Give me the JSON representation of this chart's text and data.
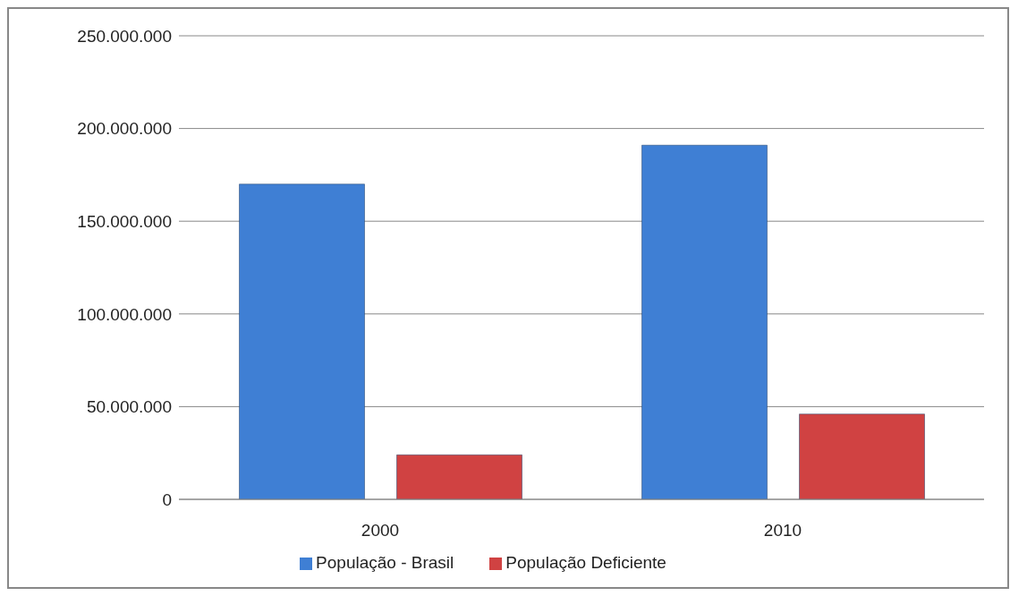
{
  "chart_data": {
    "type": "bar",
    "categories": [
      "2000",
      "2010"
    ],
    "series": [
      {
        "name": "População - Brasil",
        "color": "#3f7fd4",
        "values": [
          170000000,
          191000000
        ]
      },
      {
        "name": "População Deficiente",
        "color": "#d04242",
        "values": [
          24000000,
          46000000
        ]
      }
    ],
    "ylim": [
      0,
      250000000
    ],
    "yticks": [
      {
        "value": 0,
        "label": "0"
      },
      {
        "value": 50000000,
        "label": "50.000.000"
      },
      {
        "value": 100000000,
        "label": "100.000.000"
      },
      {
        "value": 150000000,
        "label": "150.000.000"
      },
      {
        "value": 200000000,
        "label": "200.000.000"
      },
      {
        "value": 250000000,
        "label": "250.000.000"
      }
    ],
    "grid": "y",
    "legend": "bottom"
  }
}
